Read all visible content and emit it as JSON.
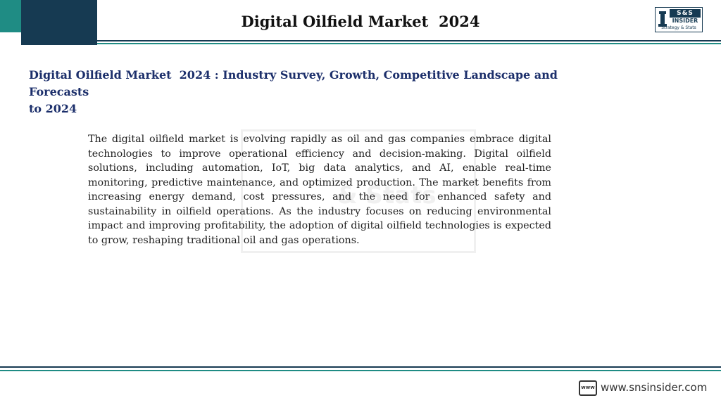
{
  "header": {
    "title": "Digital Oilfield Market  2024",
    "logo": {
      "ss_text": "S&S",
      "insider_text": "INSIDER",
      "tagline": "Strategy & Stats"
    }
  },
  "main": {
    "subtitle": "Digital Oilfield Market  2024 : Industry Survey, Growth, Competitive Landscape and Forecasts\nto 2024",
    "watermark_text": "& Stats",
    "body": "The digital oilfield market is evolving rapidly as oil and gas companies embrace digital technologies to improve operational efficiency and decision-making. Digital oilfield solutions, including automation, IoT, big data analytics, and AI, enable real-time monitoring, predictive maintenance, and optimized production. The market benefits from increasing energy demand, cost pressures, and the need for enhanced safety and sustainability in oilfield operations. As the industry focuses on reducing environmental impact and improving profitability, the adoption of digital oilfield technologies is expected to grow, reshaping traditional oil and gas operations."
  },
  "footer": {
    "icon_label": "www",
    "url": "www.snsinsider.com"
  },
  "colors": {
    "navy": "#163a52",
    "teal": "#1f8c84",
    "subtitle_blue": "#1c2f6b"
  }
}
